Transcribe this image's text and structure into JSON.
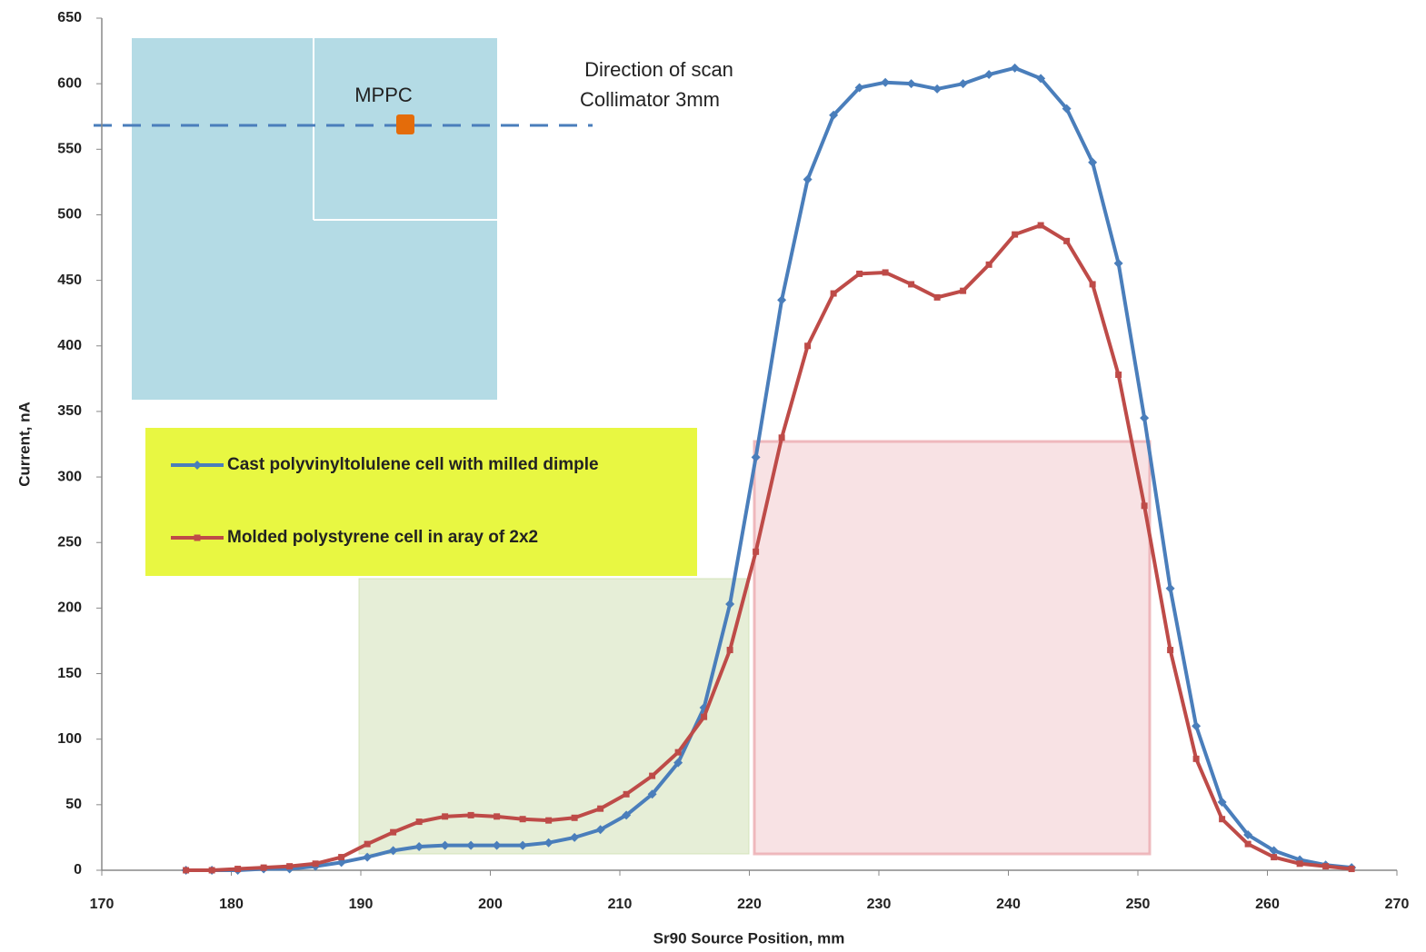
{
  "chart_data": {
    "type": "line",
    "xlabel": "Sr90 Source Position, mm",
    "ylabel": "Current, nA",
    "annotations": [
      "MPPC",
      "Direction of scan",
      "Collimator 3mm"
    ],
    "x": [
      176.5,
      178.5,
      180.5,
      182.5,
      184.5,
      186.5,
      188.5,
      190.5,
      192.5,
      194.5,
      196.5,
      198.5,
      200.5,
      202.5,
      204.5,
      206.5,
      208.5,
      210.5,
      212.5,
      214.5,
      216.5,
      218.5,
      220.5,
      222.5,
      224.5,
      226.5,
      228.5,
      230.5,
      232.5,
      234.5,
      236.5,
      238.5,
      240.5,
      242.5,
      244.5,
      246.5,
      248.5,
      250.5,
      252.5,
      254.5,
      256.5,
      258.5,
      260.5,
      262.5,
      264.5,
      266.5
    ],
    "series": [
      {
        "name": "Cast polyvinyltolulene cell with milled dimple",
        "color": "#4a7ebb",
        "marker": "diamond",
        "values": [
          0,
          0,
          0,
          1,
          1,
          3,
          6,
          10,
          15,
          18,
          19,
          19,
          19,
          19,
          21,
          25,
          31,
          42,
          58,
          82,
          124,
          203,
          315,
          435,
          527,
          576,
          597,
          601,
          600,
          596,
          600,
          607,
          612,
          604,
          581,
          540,
          463,
          345,
          215,
          110,
          52,
          27,
          15,
          8,
          4,
          2
        ]
      },
      {
        "name": "Molded polystyrene cell in aray of 2x2",
        "color": "#be4b48",
        "marker": "square",
        "values": [
          0,
          0,
          1,
          2,
          3,
          5,
          10,
          20,
          29,
          37,
          41,
          42,
          41,
          39,
          38,
          40,
          47,
          58,
          72,
          90,
          117,
          168,
          243,
          330,
          400,
          440,
          455,
          456,
          447,
          437,
          442,
          462,
          485,
          492,
          480,
          447,
          378,
          278,
          168,
          85,
          39,
          20,
          10,
          5,
          3,
          1
        ]
      }
    ],
    "xlim": [
      170,
      270
    ],
    "xticks": [
      170,
      180,
      190,
      200,
      210,
      220,
      230,
      240,
      250,
      260,
      270
    ],
    "ylim": [
      0,
      650
    ],
    "yticks": [
      0,
      50,
      100,
      150,
      200,
      250,
      300,
      350,
      400,
      450,
      500,
      550,
      600,
      650
    ],
    "grid": false,
    "legend": "upper left"
  }
}
